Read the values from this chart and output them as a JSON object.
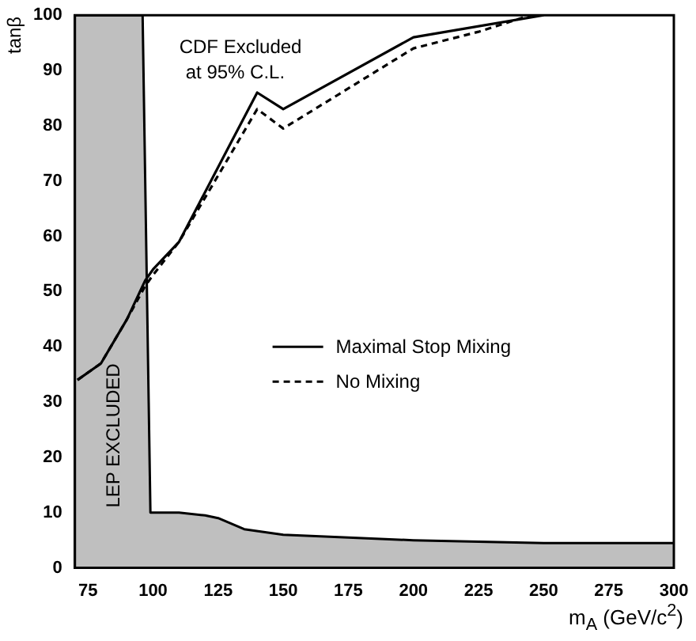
{
  "chart_data": {
    "type": "line",
    "xlabel": "m$_{A}$ (GeV/c$^{2}$)",
    "ylabel": "tanβ",
    "xlim": [
      70,
      300
    ],
    "ylim": [
      0,
      100
    ],
    "xticks": [
      75,
      100,
      125,
      150,
      175,
      200,
      225,
      250,
      275,
      300
    ],
    "yticks": [
      0,
      10,
      20,
      30,
      40,
      50,
      60,
      70,
      80,
      90,
      100
    ],
    "grid": false,
    "legend": "right",
    "marker": "none",
    "annotations": [
      "CDF Excluded",
      "at 95% C.L.",
      "LEP EXCLUDED"
    ],
    "series": [
      {
        "type": "area",
        "color": "#000000",
        "x": [
          70,
          96,
          99,
          110,
          120,
          125,
          135,
          150,
          175,
          200,
          250,
          300
        ],
        "values": [
          100,
          100,
          10,
          10,
          9.5,
          9,
          7,
          6,
          5.5,
          5,
          4.5,
          4.5
        ]
      },
      {
        "name": "Maximal Stop Mixing",
        "color": "#000000",
        "line_style": "solid",
        "x": [
          71,
          80,
          90,
          97,
          100,
          110,
          120,
          130,
          140,
          150,
          200,
          250
        ],
        "values": [
          34,
          37,
          45,
          52,
          54,
          59,
          68,
          77,
          86,
          83,
          96,
          100
        ]
      },
      {
        "name": "No Mixing",
        "color": "#000000",
        "line_style": "dashed",
        "x": [
          71,
          80,
          90,
          97,
          100,
          110,
          120,
          130,
          140,
          150,
          200,
          225,
          245
        ],
        "values": [
          34,
          37,
          45,
          51,
          53,
          59,
          67,
          75,
          83,
          79.5,
          94,
          97,
          100
        ]
      }
    ]
  }
}
